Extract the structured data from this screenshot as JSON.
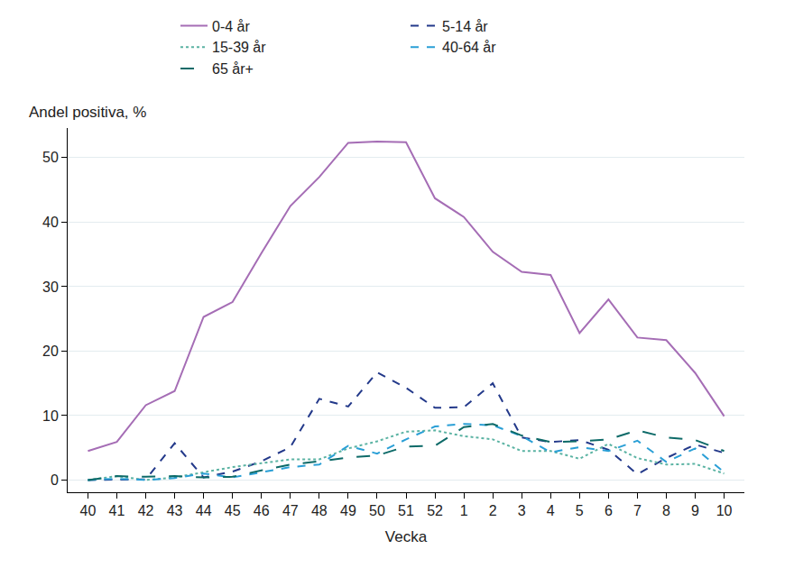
{
  "chart_data": {
    "type": "line",
    "x_label": "Vecka",
    "y_label": "Andel positiva, %",
    "categories": [
      "40",
      "41",
      "42",
      "43",
      "44",
      "45",
      "46",
      "47",
      "48",
      "49",
      "50",
      "51",
      "52",
      "1",
      "2",
      "3",
      "4",
      "5",
      "6",
      "7",
      "8",
      "9",
      "10"
    ],
    "series": [
      {
        "name": "0-4 år",
        "color": "#a56db5",
        "line_style": "solid",
        "values": [
          4.5,
          5.9,
          11.6,
          13.8,
          25.3,
          27.6,
          35.2,
          42.5,
          47,
          52.3,
          52.5,
          52.4,
          43.7,
          40.8,
          35.4,
          32.3,
          31.8,
          22.8,
          28,
          22.1,
          21.7,
          16.6,
          9.9
        ]
      },
      {
        "name": "5-14 år",
        "color": "#23398a",
        "line_style": "dash",
        "values": [
          0,
          0,
          0.1,
          5.7,
          0.4,
          1.3,
          2.9,
          5.1,
          12.6,
          11.4,
          16.7,
          14.3,
          11.2,
          11.3,
          15,
          6.6,
          5.9,
          6.2,
          4.7,
          0.9,
          3.4,
          5.5,
          4.2
        ]
      },
      {
        "name": "15-39 år",
        "color": "#5bb3a3",
        "line_style": "dot",
        "values": [
          0,
          0.6,
          0,
          0.4,
          1.2,
          2,
          2.6,
          3.2,
          3.2,
          4.9,
          6,
          7.5,
          7.7,
          6.8,
          6.3,
          4.5,
          4.5,
          3.3,
          5.6,
          3.4,
          2.4,
          2.5,
          1.0
        ]
      },
      {
        "name": "40-64 år",
        "color": "#2a9fd6",
        "line_style": "dash",
        "values": [
          0,
          0.2,
          0,
          0.3,
          1,
          0.4,
          1.2,
          2,
          2.4,
          5.3,
          4.1,
          6.3,
          8.3,
          8.7,
          8.5,
          6.8,
          4.3,
          5.1,
          4.5,
          6.1,
          2.8,
          4.9,
          1.2
        ]
      },
      {
        "name": "65 år+",
        "color": "#0d6a68",
        "line_style": "longdash",
        "values": [
          0,
          0.6,
          0.5,
          0.6,
          0.4,
          0.5,
          1.5,
          2.4,
          2.9,
          3.5,
          3.8,
          5.2,
          5.3,
          8.2,
          8.7,
          6.9,
          5.9,
          6,
          6.3,
          7.7,
          6.6,
          6.2,
          4.5
        ]
      }
    ],
    "ylim": [
      -1.9,
      54.6
    ],
    "yticks": [
      0,
      10,
      20,
      30,
      40,
      50
    ],
    "grid": true,
    "legend": "top"
  }
}
